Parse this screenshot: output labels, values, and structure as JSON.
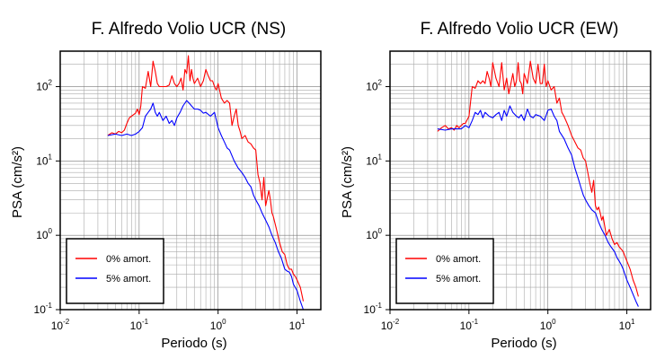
{
  "chart_data": [
    {
      "type": "line",
      "title": "F. Alfredo Volio UCR (NS)",
      "xlabel": "Periodo (s)",
      "ylabel": "PSA (cm/s²)",
      "xscale": "log",
      "yscale": "log",
      "xlim": [
        0.01,
        20
      ],
      "ylim": [
        0.1,
        300
      ],
      "xticks": [
        "10-2",
        "10-1",
        "100",
        "101"
      ],
      "yticks": [
        "10-1",
        "100",
        "101",
        "102"
      ],
      "grid": true,
      "legend_position": "bottom-left",
      "series": [
        {
          "name": "0% amort.",
          "color": "#ff0000",
          "x": [
            0.04,
            0.045,
            0.05,
            0.055,
            0.06,
            0.065,
            0.07,
            0.075,
            0.08,
            0.085,
            0.09,
            0.095,
            0.1,
            0.105,
            0.11,
            0.12,
            0.13,
            0.14,
            0.15,
            0.16,
            0.17,
            0.18,
            0.19,
            0.2,
            0.22,
            0.24,
            0.26,
            0.28,
            0.3,
            0.32,
            0.34,
            0.36,
            0.38,
            0.4,
            0.42,
            0.44,
            0.46,
            0.48,
            0.5,
            0.55,
            0.6,
            0.65,
            0.7,
            0.75,
            0.8,
            0.85,
            0.9,
            0.95,
            1.0,
            1.1,
            1.2,
            1.3,
            1.4,
            1.5,
            1.6,
            1.7,
            1.8,
            1.9,
            2.0,
            2.2,
            2.4,
            2.6,
            2.8,
            3.0,
            3.2,
            3.4,
            3.6,
            3.8,
            4.0,
            4.2,
            4.4,
            4.6,
            4.8,
            5.0,
            5.5,
            6.0,
            6.5,
            7.0,
            7.5,
            8.0,
            8.5,
            9.0,
            9.5,
            10.0,
            11.0,
            12.0
          ],
          "y": [
            22,
            24,
            23,
            25,
            24,
            26,
            32,
            38,
            40,
            42,
            44,
            50,
            42,
            55,
            100,
            95,
            160,
            100,
            220,
            160,
            110,
            100,
            100,
            100,
            100,
            105,
            140,
            110,
            100,
            110,
            130,
            90,
            170,
            150,
            260,
            120,
            170,
            130,
            110,
            130,
            100,
            120,
            170,
            140,
            120,
            120,
            100,
            90,
            110,
            70,
            60,
            65,
            60,
            30,
            40,
            50,
            30,
            25,
            20,
            22,
            18,
            17,
            15,
            14,
            6.5,
            5,
            3,
            6,
            2.5,
            3.2,
            4,
            3,
            2,
            1.8,
            1.2,
            0.8,
            0.6,
            0.55,
            0.4,
            0.35,
            0.35,
            0.3,
            0.28,
            0.25,
            0.2,
            0.13
          ]
        },
        {
          "name": "5% amort.",
          "color": "#0000ff",
          "x": [
            0.04,
            0.05,
            0.06,
            0.07,
            0.08,
            0.09,
            0.1,
            0.11,
            0.12,
            0.13,
            0.14,
            0.15,
            0.16,
            0.17,
            0.18,
            0.2,
            0.22,
            0.24,
            0.26,
            0.28,
            0.3,
            0.33,
            0.36,
            0.4,
            0.43,
            0.46,
            0.5,
            0.55,
            0.6,
            0.65,
            0.7,
            0.8,
            0.9,
            1.0,
            1.1,
            1.2,
            1.3,
            1.4,
            1.6,
            1.8,
            2.0,
            2.2,
            2.4,
            2.6,
            2.8,
            3.0,
            3.3,
            3.6,
            4.0,
            4.4,
            4.8,
            5.3,
            5.8,
            6.3,
            7.0,
            7.5,
            8.0,
            8.5,
            9.0,
            10.0,
            11.0,
            12.0
          ],
          "y": [
            22,
            23,
            22,
            23,
            22,
            23,
            25,
            28,
            40,
            45,
            50,
            60,
            45,
            40,
            45,
            35,
            40,
            32,
            35,
            30,
            38,
            45,
            55,
            65,
            60,
            55,
            50,
            50,
            48,
            44,
            45,
            40,
            45,
            28,
            22,
            18,
            15,
            14,
            10,
            8,
            7,
            6,
            5,
            4.5,
            3.5,
            3,
            2.5,
            2,
            1.6,
            1.3,
            1.0,
            0.8,
            0.6,
            0.5,
            0.35,
            0.33,
            0.32,
            0.28,
            0.22,
            0.18,
            0.13,
            0.1
          ]
        }
      ]
    },
    {
      "type": "line",
      "title": "F. Alfredo Volio UCR (EW)",
      "xlabel": "Periodo (s)",
      "ylabel": "PSA (cm/s²)",
      "xscale": "log",
      "yscale": "log",
      "xlim": [
        0.01,
        20
      ],
      "ylim": [
        0.1,
        300
      ],
      "xticks": [
        "10-2",
        "10-1",
        "100",
        "101"
      ],
      "yticks": [
        "10-1",
        "100",
        "101",
        "102"
      ],
      "grid": true,
      "legend_position": "bottom-left",
      "series": [
        {
          "name": "0% amort.",
          "color": "#ff0000",
          "x": [
            0.04,
            0.045,
            0.05,
            0.055,
            0.06,
            0.065,
            0.07,
            0.075,
            0.08,
            0.085,
            0.09,
            0.1,
            0.11,
            0.12,
            0.13,
            0.14,
            0.15,
            0.16,
            0.17,
            0.18,
            0.19,
            0.2,
            0.22,
            0.24,
            0.26,
            0.28,
            0.3,
            0.32,
            0.34,
            0.36,
            0.38,
            0.4,
            0.42,
            0.44,
            0.46,
            0.48,
            0.5,
            0.55,
            0.6,
            0.65,
            0.7,
            0.75,
            0.8,
            0.85,
            0.9,
            0.95,
            1.0,
            1.1,
            1.2,
            1.3,
            1.4,
            1.5,
            1.6,
            1.8,
            2.0,
            2.2,
            2.4,
            2.6,
            2.8,
            3.0,
            3.2,
            3.4,
            3.6,
            3.8,
            4.0,
            4.2,
            4.4,
            4.6,
            4.8,
            5.0,
            5.5,
            6.0,
            6.5,
            7.0,
            7.5,
            8.0,
            8.5,
            9.0,
            10.0,
            11.0,
            12.0,
            13.0,
            14.0
          ],
          "y": [
            25,
            28,
            30,
            27,
            28,
            26,
            30,
            28,
            30,
            32,
            32,
            40,
            100,
            95,
            120,
            110,
            120,
            110,
            160,
            130,
            100,
            210,
            130,
            100,
            210,
            90,
            130,
            80,
            110,
            150,
            100,
            120,
            210,
            120,
            110,
            80,
            150,
            110,
            220,
            130,
            110,
            200,
            110,
            110,
            200,
            100,
            120,
            90,
            100,
            60,
            70,
            45,
            40,
            30,
            22,
            18,
            15,
            14,
            11,
            10,
            7,
            5,
            3.8,
            5.5,
            2.5,
            2.2,
            2.4,
            2,
            1.6,
            1.8,
            1.0,
            1.2,
            0.9,
            0.75,
            0.8,
            0.7,
            0.65,
            0.6,
            0.45,
            0.35,
            0.25,
            0.2,
            0.15
          ]
        },
        {
          "name": "5% amort.",
          "color": "#0000ff",
          "x": [
            0.04,
            0.05,
            0.06,
            0.07,
            0.08,
            0.09,
            0.1,
            0.11,
            0.12,
            0.13,
            0.14,
            0.15,
            0.16,
            0.18,
            0.2,
            0.22,
            0.24,
            0.26,
            0.28,
            0.3,
            0.33,
            0.36,
            0.4,
            0.43,
            0.46,
            0.5,
            0.55,
            0.6,
            0.65,
            0.7,
            0.8,
            0.9,
            1.0,
            1.1,
            1.2,
            1.3,
            1.4,
            1.6,
            1.8,
            2.0,
            2.2,
            2.4,
            2.6,
            2.8,
            3.0,
            3.3,
            3.6,
            4.0,
            4.4,
            4.8,
            5.3,
            5.8,
            6.3,
            7.0,
            7.5,
            8.0,
            8.5,
            9.0,
            10.0,
            11.0,
            12.0,
            13.0,
            14.0
          ],
          "y": [
            27,
            26,
            27,
            27,
            27,
            30,
            28,
            35,
            45,
            42,
            48,
            38,
            45,
            40,
            38,
            42,
            45,
            35,
            48,
            40,
            55,
            45,
            40,
            38,
            42,
            35,
            50,
            40,
            38,
            42,
            40,
            35,
            48,
            50,
            40,
            35,
            25,
            20,
            15,
            12,
            8,
            6,
            4.5,
            3.5,
            3,
            2.5,
            2.2,
            2,
            1.5,
            1.2,
            1.0,
            0.8,
            0.7,
            0.6,
            0.5,
            0.45,
            0.4,
            0.35,
            0.25,
            0.2,
            0.16,
            0.13,
            0.11
          ]
        }
      ]
    }
  ]
}
